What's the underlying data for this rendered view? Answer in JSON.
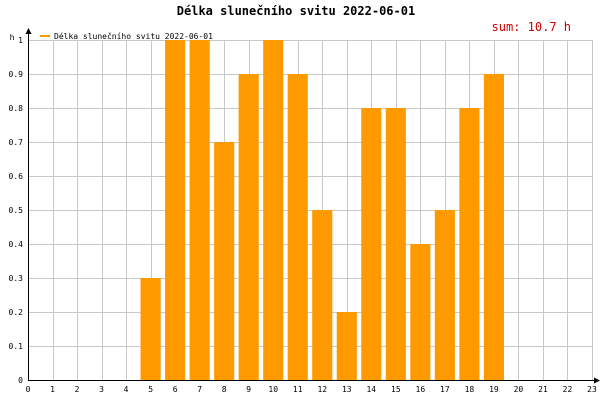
{
  "chart_data": {
    "type": "bar",
    "title": "Délka slunečního svitu 2022-06-01",
    "legend": "Délka slunečního svitu 2022-06-01",
    "legend_placement": "top-left",
    "sum_label": "sum: 10.7 h",
    "ylabel": "h",
    "xlabel": "",
    "grid": true,
    "ylim": [
      0,
      1.0
    ],
    "yticks": [
      "0",
      "0.1",
      "0.2",
      "0.3",
      "0.4",
      "0.5",
      "0.6",
      "0.7",
      "0.8",
      "0.9",
      "1"
    ],
    "xticks": [
      "0",
      "1",
      "2",
      "3",
      "4",
      "5",
      "6",
      "7",
      "8",
      "9",
      "10",
      "11",
      "12",
      "13",
      "14",
      "15",
      "16",
      "17",
      "18",
      "19",
      "20",
      "21",
      "22",
      "23"
    ],
    "categories": [
      "5",
      "6",
      "7",
      "8",
      "9",
      "10",
      "11",
      "12",
      "13",
      "14",
      "15",
      "16",
      "17",
      "18",
      "19"
    ],
    "values": [
      0.3,
      1.0,
      1.0,
      0.7,
      0.9,
      1.0,
      0.9,
      0.5,
      0.2,
      0.8,
      0.8,
      0.4,
      0.5,
      0.8,
      0.9
    ],
    "bar_color": "#ff9900",
    "grid_color": "#c8c8c8",
    "sum_color": "#cc0000"
  }
}
